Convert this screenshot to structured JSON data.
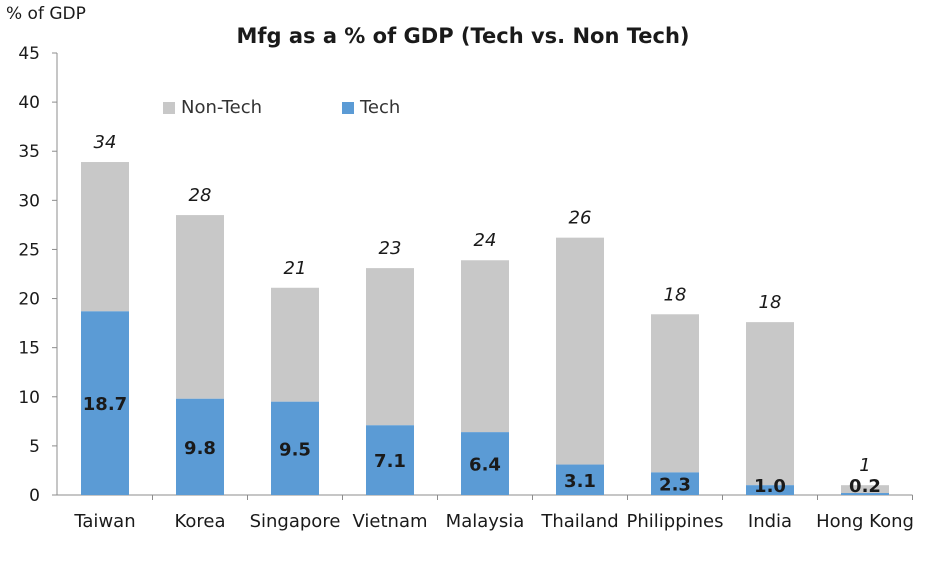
{
  "header": {
    "title": "Mfg as a % of GDP (Tech vs. Non Tech)",
    "y_unit": "% of GDP"
  },
  "chart_data": {
    "type": "bar",
    "stacked": true,
    "categories": [
      "Taiwan",
      "Korea",
      "Singapore",
      "Vietnam",
      "Malaysia",
      "Thailand",
      "Philippines",
      "India",
      "Hong Kong"
    ],
    "series": [
      {
        "name": "Tech",
        "values": [
          18.7,
          9.8,
          9.5,
          7.1,
          6.4,
          3.1,
          2.3,
          1.0,
          0.2
        ],
        "color": "#5b9bd5"
      },
      {
        "name": "Non-Tech",
        "values": [
          15.2,
          18.7,
          11.6,
          16.0,
          17.5,
          23.1,
          16.1,
          16.6,
          0.8
        ],
        "color": "#c8c8c8"
      }
    ],
    "tech_labels": [
      "18.7",
      "9.8",
      "9.5",
      "7.1",
      "6.4",
      "3.1",
      "2.3",
      "1.0",
      "0.2"
    ],
    "total_labels": [
      "34",
      "28",
      "21",
      "23",
      "24",
      "26",
      "18",
      "18",
      "1"
    ],
    "ylim": [
      0,
      45
    ],
    "yticks": [
      "0",
      "5",
      "10",
      "15",
      "20",
      "25",
      "30",
      "35",
      "40",
      "45"
    ],
    "grid": false,
    "legend_position": "top-left"
  }
}
